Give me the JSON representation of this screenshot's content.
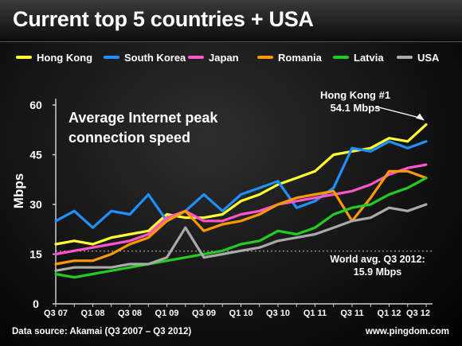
{
  "title": "Current top 5 countries + USA",
  "source": "Data source: Akamai (Q3 2007 – Q3 2012)",
  "site": "www.pingdom.com",
  "chart_data": {
    "type": "line",
    "title": "Current top 5 countries + USA",
    "subtitle": "Average Internet peak connection speed",
    "ylabel": "Mbps",
    "ylim": [
      0,
      60
    ],
    "yticks": [
      "0",
      "15",
      "30",
      "45",
      "60"
    ],
    "grid": false,
    "legend_position": "top",
    "x": [
      "Q3 07",
      "Q4 07",
      "Q1 08",
      "Q2 08",
      "Q3 08",
      "Q4 08",
      "Q1 09",
      "Q2 09",
      "Q3 09",
      "Q4 09",
      "Q1 10",
      "Q2 10",
      "Q3 10",
      "Q4 10",
      "Q1 11",
      "Q2 11",
      "Q3 11",
      "Q4 11",
      "Q1 12",
      "Q2 12",
      "Q3 12"
    ],
    "xtick_labels": [
      "Q3 07",
      "Q1 08",
      "Q3 08",
      "Q1 09",
      "Q3 09",
      "Q1 10",
      "Q3 10",
      "Q1 11",
      "Q3 11",
      "Q1 12",
      "Q3 12"
    ],
    "series": [
      {
        "name": "Hong Kong",
        "color": "#ffff33",
        "values": [
          18,
          19,
          18,
          20,
          21,
          22,
          27,
          26,
          26,
          27,
          31,
          33,
          36,
          38,
          40,
          45,
          46,
          47,
          50,
          49,
          54.1
        ]
      },
      {
        "name": "South Korea",
        "color": "#1e90ff",
        "values": [
          25,
          28,
          23,
          28,
          27,
          33,
          25,
          28,
          33,
          28,
          33,
          35,
          37,
          29,
          31,
          35,
          47,
          46,
          49,
          47,
          49
        ]
      },
      {
        "name": "Japan",
        "color": "#ff55cc",
        "values": [
          15,
          16,
          17,
          18,
          19,
          21,
          26,
          28,
          25,
          25,
          27,
          28,
          30,
          31,
          32,
          33,
          34,
          36,
          39,
          41,
          42
        ]
      },
      {
        "name": "Romania",
        "color": "#ff9900",
        "values": [
          12,
          13,
          13,
          15,
          18,
          20,
          25,
          28,
          22,
          24,
          25,
          27,
          30,
          32,
          33,
          34,
          25,
          32,
          40,
          40,
          38
        ]
      },
      {
        "name": "Latvia",
        "color": "#22cc22",
        "values": [
          9,
          8,
          9,
          10,
          11,
          12,
          13,
          14,
          15,
          16,
          18,
          19,
          22,
          21,
          23,
          27,
          29,
          30,
          33,
          35,
          38
        ]
      },
      {
        "name": "USA",
        "color": "#aaaaaa",
        "values": [
          10,
          11,
          11,
          11,
          12,
          12,
          14,
          23,
          14,
          15,
          16,
          17,
          19,
          20,
          21,
          23,
          25,
          26,
          29,
          28,
          30
        ]
      }
    ],
    "annotations": [
      {
        "text": [
          "Hong Kong #1",
          "54.1 Mbps"
        ]
      },
      {
        "text": [
          "World avg. Q3 2012:",
          "15.9 Mbps"
        ],
        "value": 15.9
      }
    ]
  }
}
